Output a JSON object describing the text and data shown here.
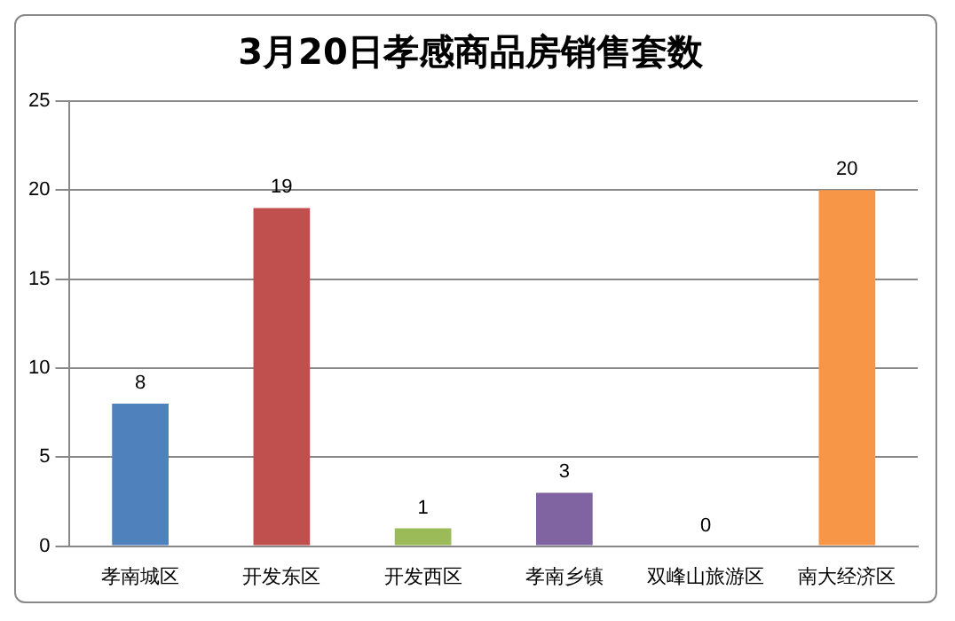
{
  "chart_data": {
    "type": "bar",
    "title": "3月20日孝感商品房销售套数",
    "categories": [
      "孝南城区",
      "开发东区",
      "开发西区",
      "孝南乡镇",
      "双峰山旅游区",
      "南大经济区"
    ],
    "values": [
      8,
      19,
      1,
      3,
      0,
      20
    ],
    "colors": [
      "#4f81bd",
      "#c0504d",
      "#9bbb59",
      "#8064a2",
      "#4bacc6",
      "#f79646"
    ],
    "ylim": [
      0,
      25
    ],
    "yticks": [
      0,
      5,
      10,
      15,
      20,
      25
    ],
    "grid": "y",
    "data_labels": true,
    "legend": false
  }
}
